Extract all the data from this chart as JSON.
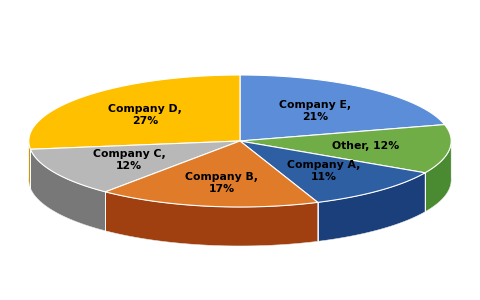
{
  "labels": [
    "Company E,\n21%",
    "Other, 12%",
    "Company A,\n11%",
    "Company B,\n17%",
    "Company C,\n12%",
    "Company D,\n27%"
  ],
  "values": [
    21,
    12,
    11,
    17,
    12,
    27
  ],
  "colors": [
    "#4472C4",
    "#70AD47",
    "#4472C4",
    "#E07B2A",
    "#A8A8A8",
    "#FFC000"
  ],
  "top_colors": [
    "#5B8DD9",
    "#70AD47",
    "#2E5FA3",
    "#E07B2A",
    "#B8B8B8",
    "#FFC000"
  ],
  "side_colors": [
    "#2E5FA3",
    "#4A8A30",
    "#1A3F7A",
    "#A04010",
    "#787878",
    "#C09000"
  ],
  "startangle": 90,
  "background_color": "#ffffff"
}
